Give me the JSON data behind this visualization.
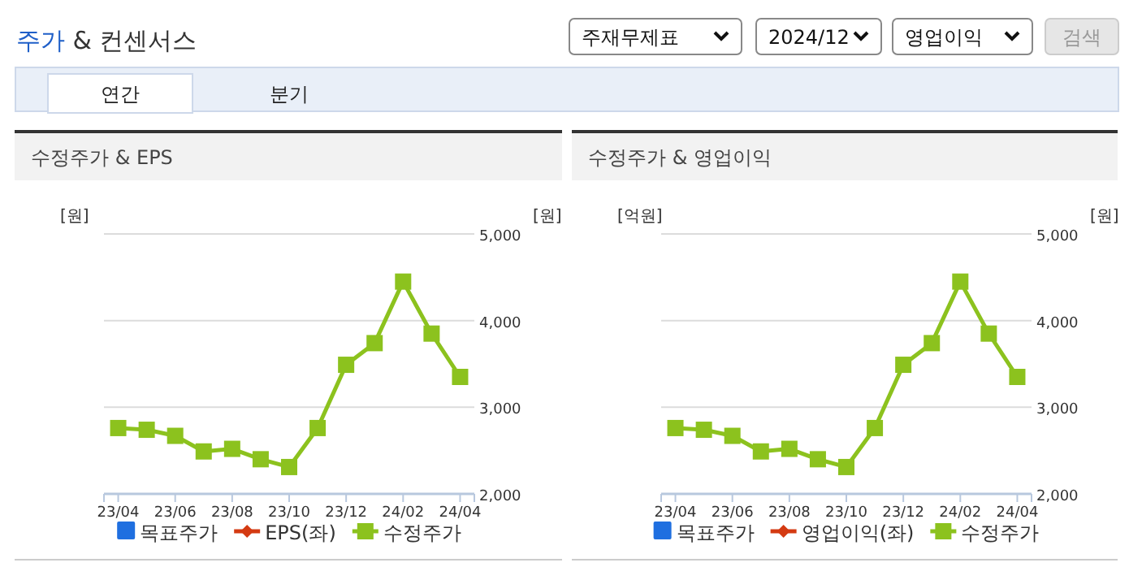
{
  "chart_data": [
    {
      "type": "other",
      "title": "주가 & 컨센서스",
      "annotations": [
        "주재무제표",
        "2024/12",
        "영업이익",
        "검색",
        "연간",
        "분기"
      ]
    },
    {
      "type": "line",
      "title": "수정주가 & EPS",
      "ylabel": "[원]",
      "y2label": "[원]",
      "categories": [
        "23/04",
        null,
        "23/06",
        null,
        "23/08",
        null,
        "23/10",
        null,
        "23/12",
        null,
        "24/02",
        null,
        "24/04"
      ],
      "series": [
        {
          "name": "목표주가",
          "type": "bar",
          "color": "#1f6fe0",
          "values": [
            null,
            null,
            null,
            null,
            null,
            null,
            null,
            null,
            null,
            null,
            null,
            null,
            null
          ]
        },
        {
          "name": "EPS(좌)",
          "type": "line",
          "marker": "diamond",
          "color": "#d43a12",
          "values": [
            null,
            null,
            null,
            null,
            null,
            null,
            null,
            null,
            null,
            null,
            null,
            null,
            null
          ]
        },
        {
          "name": "수정주가",
          "type": "line",
          "marker": "square",
          "axis": "y2",
          "color": "#8cc21e",
          "values": [
            2760,
            2740,
            2670,
            2490,
            2520,
            2400,
            2310,
            2760,
            3490,
            3740,
            4450,
            3850,
            3350
          ]
        }
      ],
      "y2lim": [
        2000,
        5000
      ],
      "y2ticks": [
        {
          "value": 2000,
          "label": "2,000"
        },
        {
          "value": 3000,
          "label": "3,000"
        },
        {
          "value": 4000,
          "label": "4,000"
        },
        {
          "value": 5000,
          "label": "5,000"
        }
      ],
      "grid": "y",
      "legend": "bottom"
    },
    {
      "type": "line",
      "title": "수정주가 & 영업이익",
      "ylabel": "[억원]",
      "y2label": "[원]",
      "categories": [
        "23/04",
        null,
        "23/06",
        null,
        "23/08",
        null,
        "23/10",
        null,
        "23/12",
        null,
        "24/02",
        null,
        "24/04"
      ],
      "series": [
        {
          "name": "목표주가",
          "type": "bar",
          "color": "#1f6fe0",
          "values": [
            null,
            null,
            null,
            null,
            null,
            null,
            null,
            null,
            null,
            null,
            null,
            null,
            null
          ]
        },
        {
          "name": "영업이익(좌)",
          "type": "line",
          "marker": "diamond",
          "color": "#d43a12",
          "values": [
            null,
            null,
            null,
            null,
            null,
            null,
            null,
            null,
            null,
            null,
            null,
            null,
            null
          ]
        },
        {
          "name": "수정주가",
          "type": "line",
          "marker": "square",
          "axis": "y2",
          "color": "#8cc21e",
          "values": [
            2760,
            2740,
            2670,
            2490,
            2520,
            2400,
            2310,
            2760,
            3490,
            3740,
            4450,
            3850,
            3350
          ]
        }
      ],
      "y2lim": [
        2000,
        5000
      ],
      "y2ticks": [
        {
          "value": 2000,
          "label": "2,000"
        },
        {
          "value": 3000,
          "label": "3,000"
        },
        {
          "value": 4000,
          "label": "4,000"
        },
        {
          "value": 5000,
          "label": "5,000"
        }
      ],
      "grid": "y",
      "legend": "bottom"
    }
  ]
}
